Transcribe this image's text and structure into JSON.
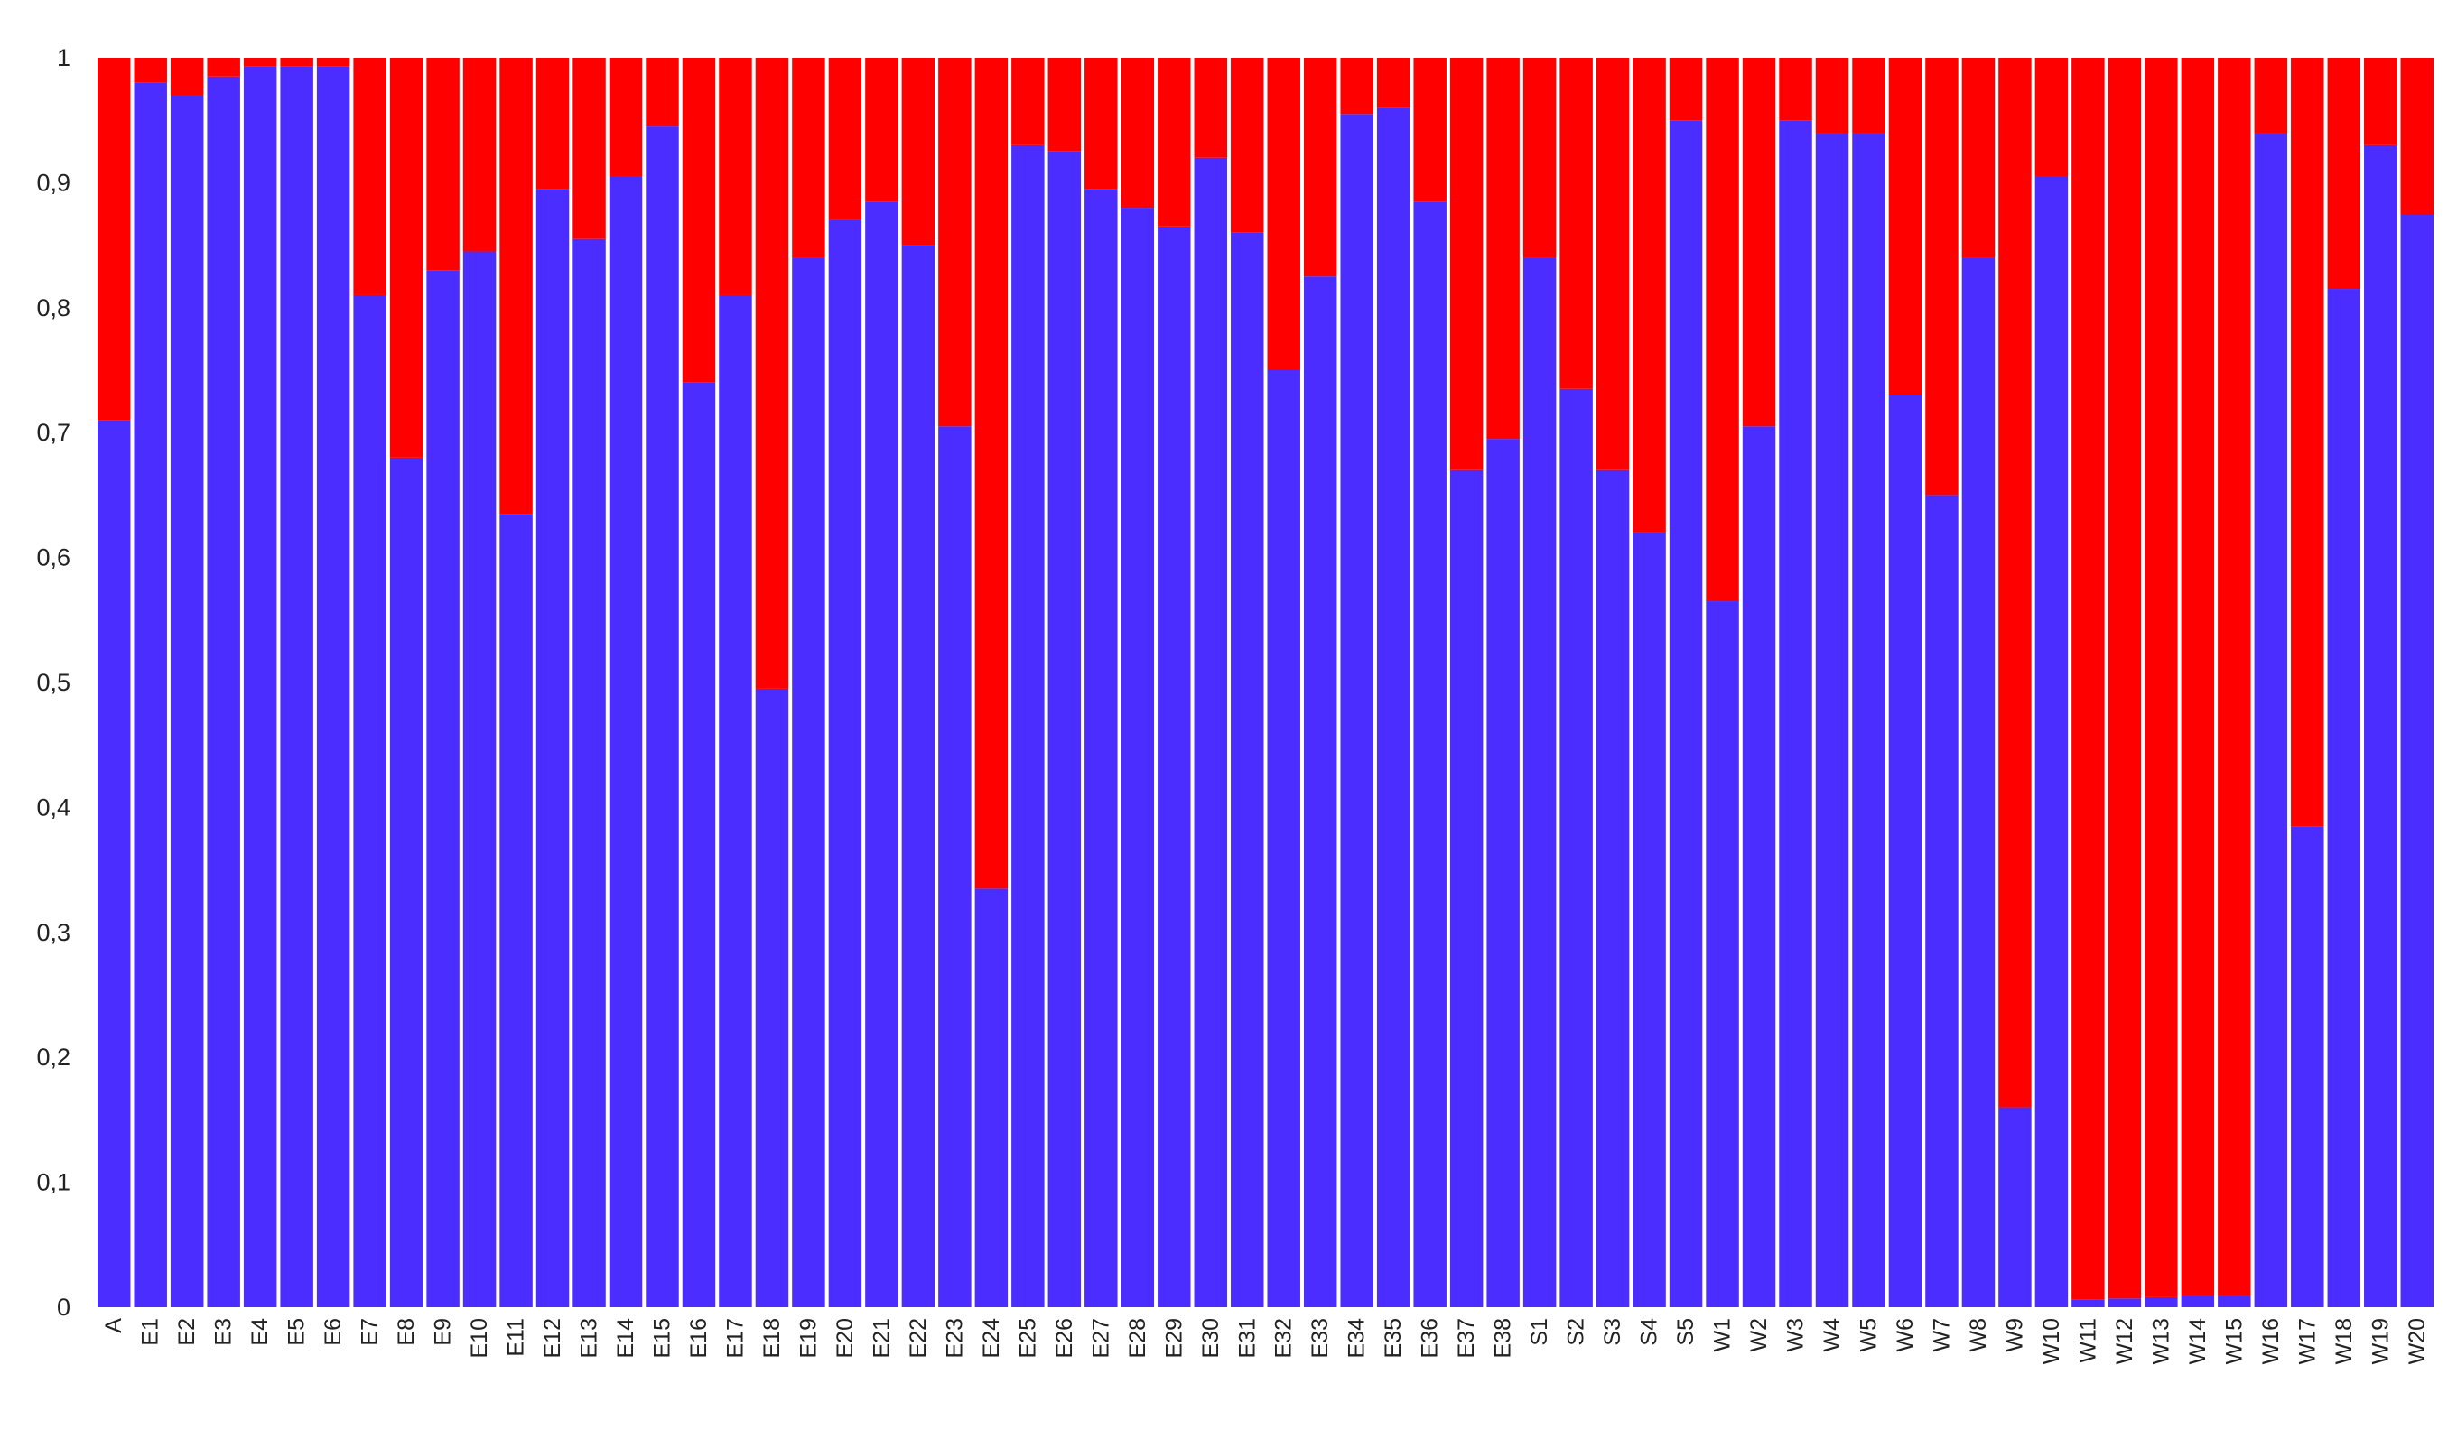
{
  "chart_data": {
    "type": "bar",
    "stacked": true,
    "grid": false,
    "legend": "none",
    "ylim": [
      0,
      1
    ],
    "yticks": [
      "0",
      "0,1",
      "0,2",
      "0,3",
      "0,4",
      "0,5",
      "0,6",
      "0,7",
      "0,8",
      "0,9",
      "1"
    ],
    "categories": [
      "A",
      "E1",
      "E2",
      "E3",
      "E4",
      "E5",
      "E6",
      "E7",
      "E8",
      "E9",
      "E10",
      "E11",
      "E12",
      "E13",
      "E14",
      "E15",
      "E16",
      "E17",
      "E18",
      "E19",
      "E20",
      "E21",
      "E22",
      "E23",
      "E24",
      "E25",
      "E26",
      "E27",
      "E28",
      "E29",
      "E30",
      "E31",
      "E32",
      "E33",
      "E34",
      "E35",
      "E36",
      "E37",
      "E38",
      "S1",
      "S2",
      "S3",
      "S4",
      "S5",
      "W1",
      "W2",
      "W3",
      "W4",
      "W5",
      "W6",
      "W7",
      "W8",
      "W9",
      "W10",
      "W11",
      "W12",
      "W13",
      "W14",
      "W15",
      "W16",
      "W17",
      "W18",
      "W19",
      "W20"
    ],
    "series": [
      {
        "color": "#4b2eff",
        "values": [
          0.71,
          0.98,
          0.97,
          0.985,
          0.993,
          0.993,
          0.993,
          0.81,
          0.68,
          0.83,
          0.845,
          0.635,
          0.895,
          0.855,
          0.905,
          0.945,
          0.74,
          0.81,
          0.495,
          0.84,
          0.87,
          0.885,
          0.85,
          0.705,
          0.335,
          0.93,
          0.925,
          0.895,
          0.88,
          0.865,
          0.92,
          0.86,
          0.75,
          0.825,
          0.955,
          0.96,
          0.885,
          0.67,
          0.695,
          0.84,
          0.735,
          0.67,
          0.62,
          0.95,
          0.565,
          0.705,
          0.95,
          0.94,
          0.94,
          0.73,
          0.65,
          0.84,
          0.16,
          0.905,
          0.006,
          0.007,
          0.008,
          0.009,
          0.009,
          0.94,
          0.385,
          0.815,
          0.93,
          0.875
        ]
      },
      {
        "color": "#ff0000",
        "values": [
          0.29,
          0.02,
          0.03,
          0.015,
          0.007,
          0.007,
          0.007,
          0.19,
          0.32,
          0.17,
          0.155,
          0.365,
          0.105,
          0.145,
          0.095,
          0.055,
          0.26,
          0.19,
          0.505,
          0.16,
          0.13,
          0.115,
          0.15,
          0.295,
          0.665,
          0.07,
          0.075,
          0.105,
          0.12,
          0.135,
          0.08,
          0.14,
          0.25,
          0.175,
          0.045,
          0.04,
          0.115,
          0.33,
          0.305,
          0.16,
          0.265,
          0.33,
          0.38,
          0.05,
          0.435,
          0.295,
          0.05,
          0.06,
          0.06,
          0.27,
          0.35,
          0.16,
          0.84,
          0.095,
          0.994,
          0.993,
          0.992,
          0.991,
          0.991,
          0.06,
          0.615,
          0.185,
          0.07,
          0.125
        ]
      }
    ]
  }
}
